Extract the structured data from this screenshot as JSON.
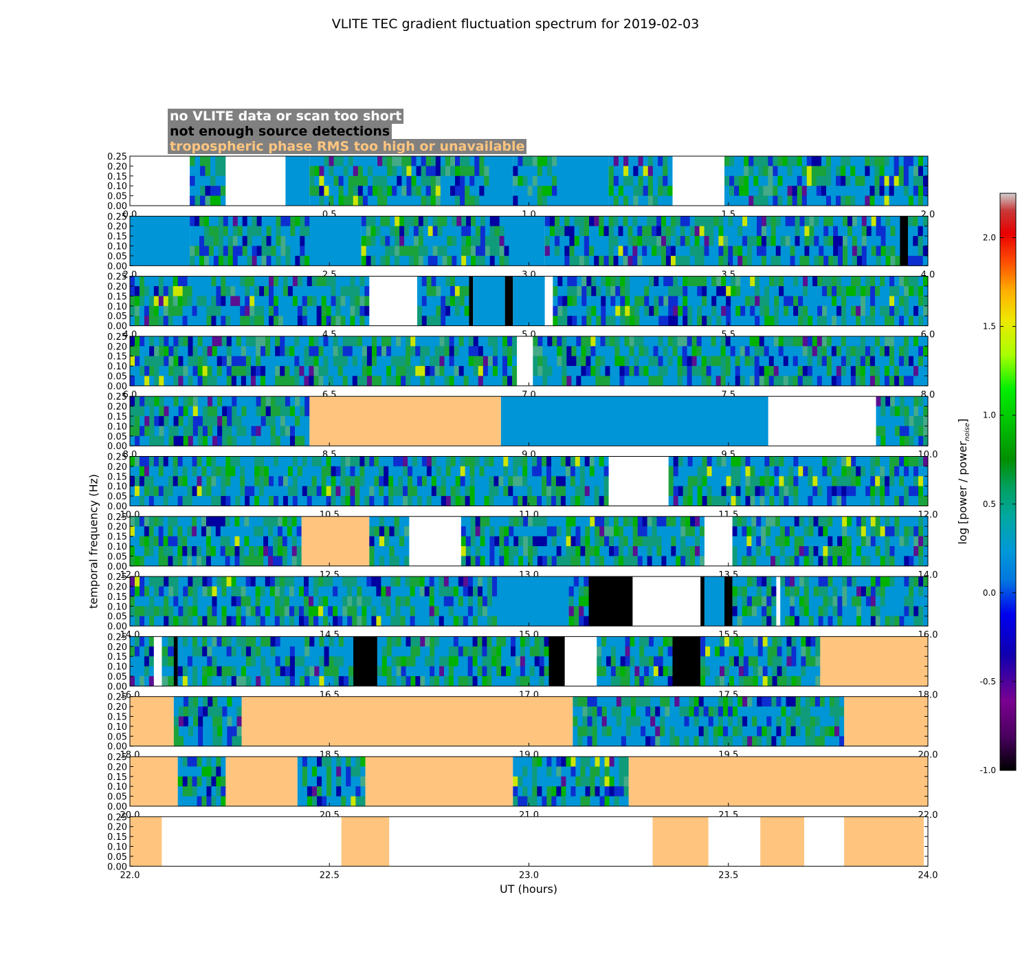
{
  "title": "VLITE TEC gradient fluctuation spectrum for 2019-02-03",
  "legend": [
    {
      "label": "no VLITE data or scan too short",
      "color": "#ffffff"
    },
    {
      "label": "not enough source detections",
      "color": "#000000"
    },
    {
      "label": "tropospheric phase RMS too high or unavailable",
      "color": "#ffc57f"
    }
  ],
  "colors": {
    "flat": "#0095d6",
    "no_data": "#ffffff",
    "no_detect": "#000000",
    "tropo": "#ffc57f",
    "legend_bg": "#808080"
  },
  "chart_data": {
    "type": "heatmap",
    "title": "VLITE TEC gradient fluctuation spectrum for 2019-02-03",
    "xlabel": "UT (hours)",
    "ylabel": "temporal frequency (Hz)",
    "colorbar_label": "log [power / power",
    "colorbar_label_sub": "noise",
    "colorbar_label_end": "]",
    "clim": [
      -1.0,
      2.25
    ],
    "colormap": "nipy_spectral",
    "colorbar_ticks": [
      "-1.0",
      "-0.5",
      "0.0",
      "0.5",
      "1.0",
      "1.5",
      "2.0"
    ],
    "ylim": [
      0,
      0.25
    ],
    "y_ticks": [
      "0.00",
      "0.05",
      "0.10",
      "0.15",
      "0.20",
      "0.25"
    ],
    "panels": [
      {
        "xlim": [
          0,
          2
        ],
        "xticks": [
          "0.0",
          "0.5",
          "1.0",
          "1.5",
          "2.0"
        ],
        "segments": [
          [
            0,
            0.15,
            "W"
          ],
          [
            0.15,
            0.24,
            "N"
          ],
          [
            0.24,
            0.39,
            "W"
          ],
          [
            0.39,
            0.45,
            "F"
          ],
          [
            0.45,
            0.9,
            "N"
          ],
          [
            0.9,
            0.96,
            "F"
          ],
          [
            0.96,
            1.07,
            "N"
          ],
          [
            1.07,
            1.2,
            "F"
          ],
          [
            1.2,
            1.36,
            "N"
          ],
          [
            1.36,
            1.49,
            "W"
          ],
          [
            1.49,
            2.0,
            "N"
          ]
        ]
      },
      {
        "xlim": [
          2,
          4
        ],
        "xticks": [
          "2.0",
          "2.5",
          "3.0",
          "3.5",
          "4.0"
        ],
        "segments": [
          [
            2.0,
            2.15,
            "F"
          ],
          [
            2.15,
            2.45,
            "N"
          ],
          [
            2.45,
            2.58,
            "F"
          ],
          [
            2.58,
            2.95,
            "N"
          ],
          [
            2.95,
            3.04,
            "F"
          ],
          [
            3.04,
            3.2,
            "N"
          ],
          [
            3.2,
            3.93,
            "N"
          ],
          [
            3.93,
            3.95,
            "B"
          ],
          [
            3.95,
            4.0,
            "N"
          ]
        ]
      },
      {
        "xlim": [
          4,
          6
        ],
        "xticks": [
          "4.0",
          "4.5",
          "5.0",
          "5.5",
          "6.0"
        ],
        "segments": [
          [
            4.0,
            4.6,
            "N"
          ],
          [
            4.6,
            4.72,
            "W"
          ],
          [
            4.72,
            4.85,
            "N"
          ],
          [
            4.85,
            4.86,
            "B"
          ],
          [
            4.86,
            4.94,
            "F"
          ],
          [
            4.94,
            4.96,
            "B"
          ],
          [
            4.96,
            5.04,
            "F"
          ],
          [
            5.04,
            5.06,
            "W"
          ],
          [
            5.06,
            6.0,
            "N"
          ]
        ]
      },
      {
        "xlim": [
          6,
          8
        ],
        "xticks": [
          "6.0",
          "6.5",
          "7.0",
          "7.5",
          "8.0"
        ],
        "segments": [
          [
            6.0,
            6.97,
            "N"
          ],
          [
            6.97,
            7.01,
            "W"
          ],
          [
            7.01,
            8.0,
            "N"
          ]
        ]
      },
      {
        "xlim": [
          8,
          10
        ],
        "xticks": [
          "8.0",
          "8.5",
          "9.0",
          "9.5",
          "10.0"
        ],
        "segments": [
          [
            8.0,
            8.45,
            "N"
          ],
          [
            8.45,
            8.93,
            "T"
          ],
          [
            8.93,
            9.6,
            "F"
          ],
          [
            9.6,
            9.87,
            "W"
          ],
          [
            9.87,
            10.0,
            "N"
          ]
        ]
      },
      {
        "xlim": [
          10,
          12
        ],
        "xticks": [
          "10.0",
          "10.5",
          "11.0",
          "11.5",
          "12.0"
        ],
        "segments": [
          [
            10.0,
            11.2,
            "N"
          ],
          [
            11.2,
            11.35,
            "W"
          ],
          [
            11.35,
            12.0,
            "N"
          ]
        ]
      },
      {
        "xlim": [
          12,
          14
        ],
        "xticks": [
          "12.0",
          "12.5",
          "13.0",
          "13.5",
          "14.0"
        ],
        "segments": [
          [
            12.0,
            12.43,
            "N"
          ],
          [
            12.43,
            12.6,
            "T"
          ],
          [
            12.6,
            12.7,
            "N"
          ],
          [
            12.7,
            12.83,
            "W"
          ],
          [
            12.83,
            13.44,
            "N"
          ],
          [
            13.44,
            13.51,
            "W"
          ],
          [
            13.51,
            14.0,
            "N"
          ]
        ]
      },
      {
        "xlim": [
          14,
          16
        ],
        "xticks": [
          "14.0",
          "14.5",
          "15.0",
          "15.5",
          "16.0"
        ],
        "segments": [
          [
            14.0,
            14.92,
            "N"
          ],
          [
            14.92,
            15.1,
            "F"
          ],
          [
            15.1,
            15.15,
            "N"
          ],
          [
            15.15,
            15.26,
            "B"
          ],
          [
            15.26,
            15.43,
            "W"
          ],
          [
            15.43,
            15.44,
            "B"
          ],
          [
            15.44,
            15.49,
            "F"
          ],
          [
            15.49,
            15.51,
            "B"
          ],
          [
            15.51,
            15.62,
            "N"
          ],
          [
            15.62,
            15.63,
            "W"
          ],
          [
            15.63,
            16.0,
            "N"
          ]
        ]
      },
      {
        "xlim": [
          16,
          18
        ],
        "xticks": [
          "16.0",
          "16.5",
          "17.0",
          "17.5",
          "18.0"
        ],
        "segments": [
          [
            16.0,
            16.06,
            "N"
          ],
          [
            16.06,
            16.08,
            "W"
          ],
          [
            16.08,
            16.11,
            "N"
          ],
          [
            16.11,
            16.12,
            "B"
          ],
          [
            16.12,
            16.56,
            "N"
          ],
          [
            16.56,
            16.62,
            "B"
          ],
          [
            16.62,
            17.05,
            "N"
          ],
          [
            17.05,
            17.09,
            "B"
          ],
          [
            17.09,
            17.17,
            "W"
          ],
          [
            17.17,
            17.36,
            "N"
          ],
          [
            17.36,
            17.43,
            "B"
          ],
          [
            17.43,
            17.73,
            "N"
          ],
          [
            17.73,
            18.0,
            "T"
          ]
        ]
      },
      {
        "xlim": [
          18,
          20
        ],
        "xticks": [
          "18.0",
          "18.5",
          "19.0",
          "19.5",
          "20.0"
        ],
        "segments": [
          [
            18.0,
            18.11,
            "T"
          ],
          [
            18.11,
            18.28,
            "N"
          ],
          [
            18.28,
            19.11,
            "T"
          ],
          [
            19.11,
            19.79,
            "N"
          ],
          [
            19.79,
            20.0,
            "T"
          ]
        ]
      },
      {
        "xlim": [
          20,
          22
        ],
        "xticks": [
          "20.0",
          "20.5",
          "21.0",
          "21.5",
          "22.0"
        ],
        "segments": [
          [
            20.0,
            20.12,
            "T"
          ],
          [
            20.12,
            20.24,
            "N"
          ],
          [
            20.24,
            20.42,
            "T"
          ],
          [
            20.42,
            20.59,
            "N"
          ],
          [
            20.59,
            20.96,
            "T"
          ],
          [
            20.96,
            21.25,
            "N"
          ],
          [
            21.25,
            22.0,
            "T"
          ]
        ]
      },
      {
        "xlim": [
          22,
          24
        ],
        "xticks": [
          "22.0",
          "22.5",
          "23.0",
          "23.5",
          "24.0"
        ],
        "segments": [
          [
            22.0,
            22.08,
            "T"
          ],
          [
            22.08,
            22.53,
            "W"
          ],
          [
            22.53,
            22.65,
            "T"
          ],
          [
            22.65,
            23.31,
            "W"
          ],
          [
            23.31,
            23.45,
            "T"
          ],
          [
            23.45,
            23.58,
            "W"
          ],
          [
            23.58,
            23.69,
            "T"
          ],
          [
            23.69,
            23.79,
            "W"
          ],
          [
            23.79,
            23.99,
            "T"
          ],
          [
            23.99,
            24.0,
            "W"
          ]
        ]
      }
    ]
  }
}
